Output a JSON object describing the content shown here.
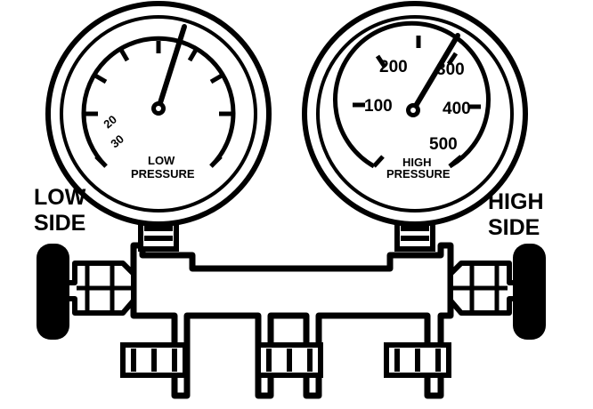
{
  "low_side_label": [
    "LOW",
    "SIDE"
  ],
  "high_side_label": [
    "HIGH",
    "SIDE"
  ],
  "low_gauge": {
    "caption": [
      "LOW",
      "PRESSURE"
    ],
    "scale_numbers": [
      "20",
      "30"
    ]
  },
  "high_gauge": {
    "caption": [
      "HIGH",
      "PRESSURE"
    ],
    "scale_numbers": [
      "100",
      "200",
      "300",
      "400",
      "500"
    ]
  },
  "colors": {
    "ink": "#000000",
    "paper": "#ffffff"
  }
}
